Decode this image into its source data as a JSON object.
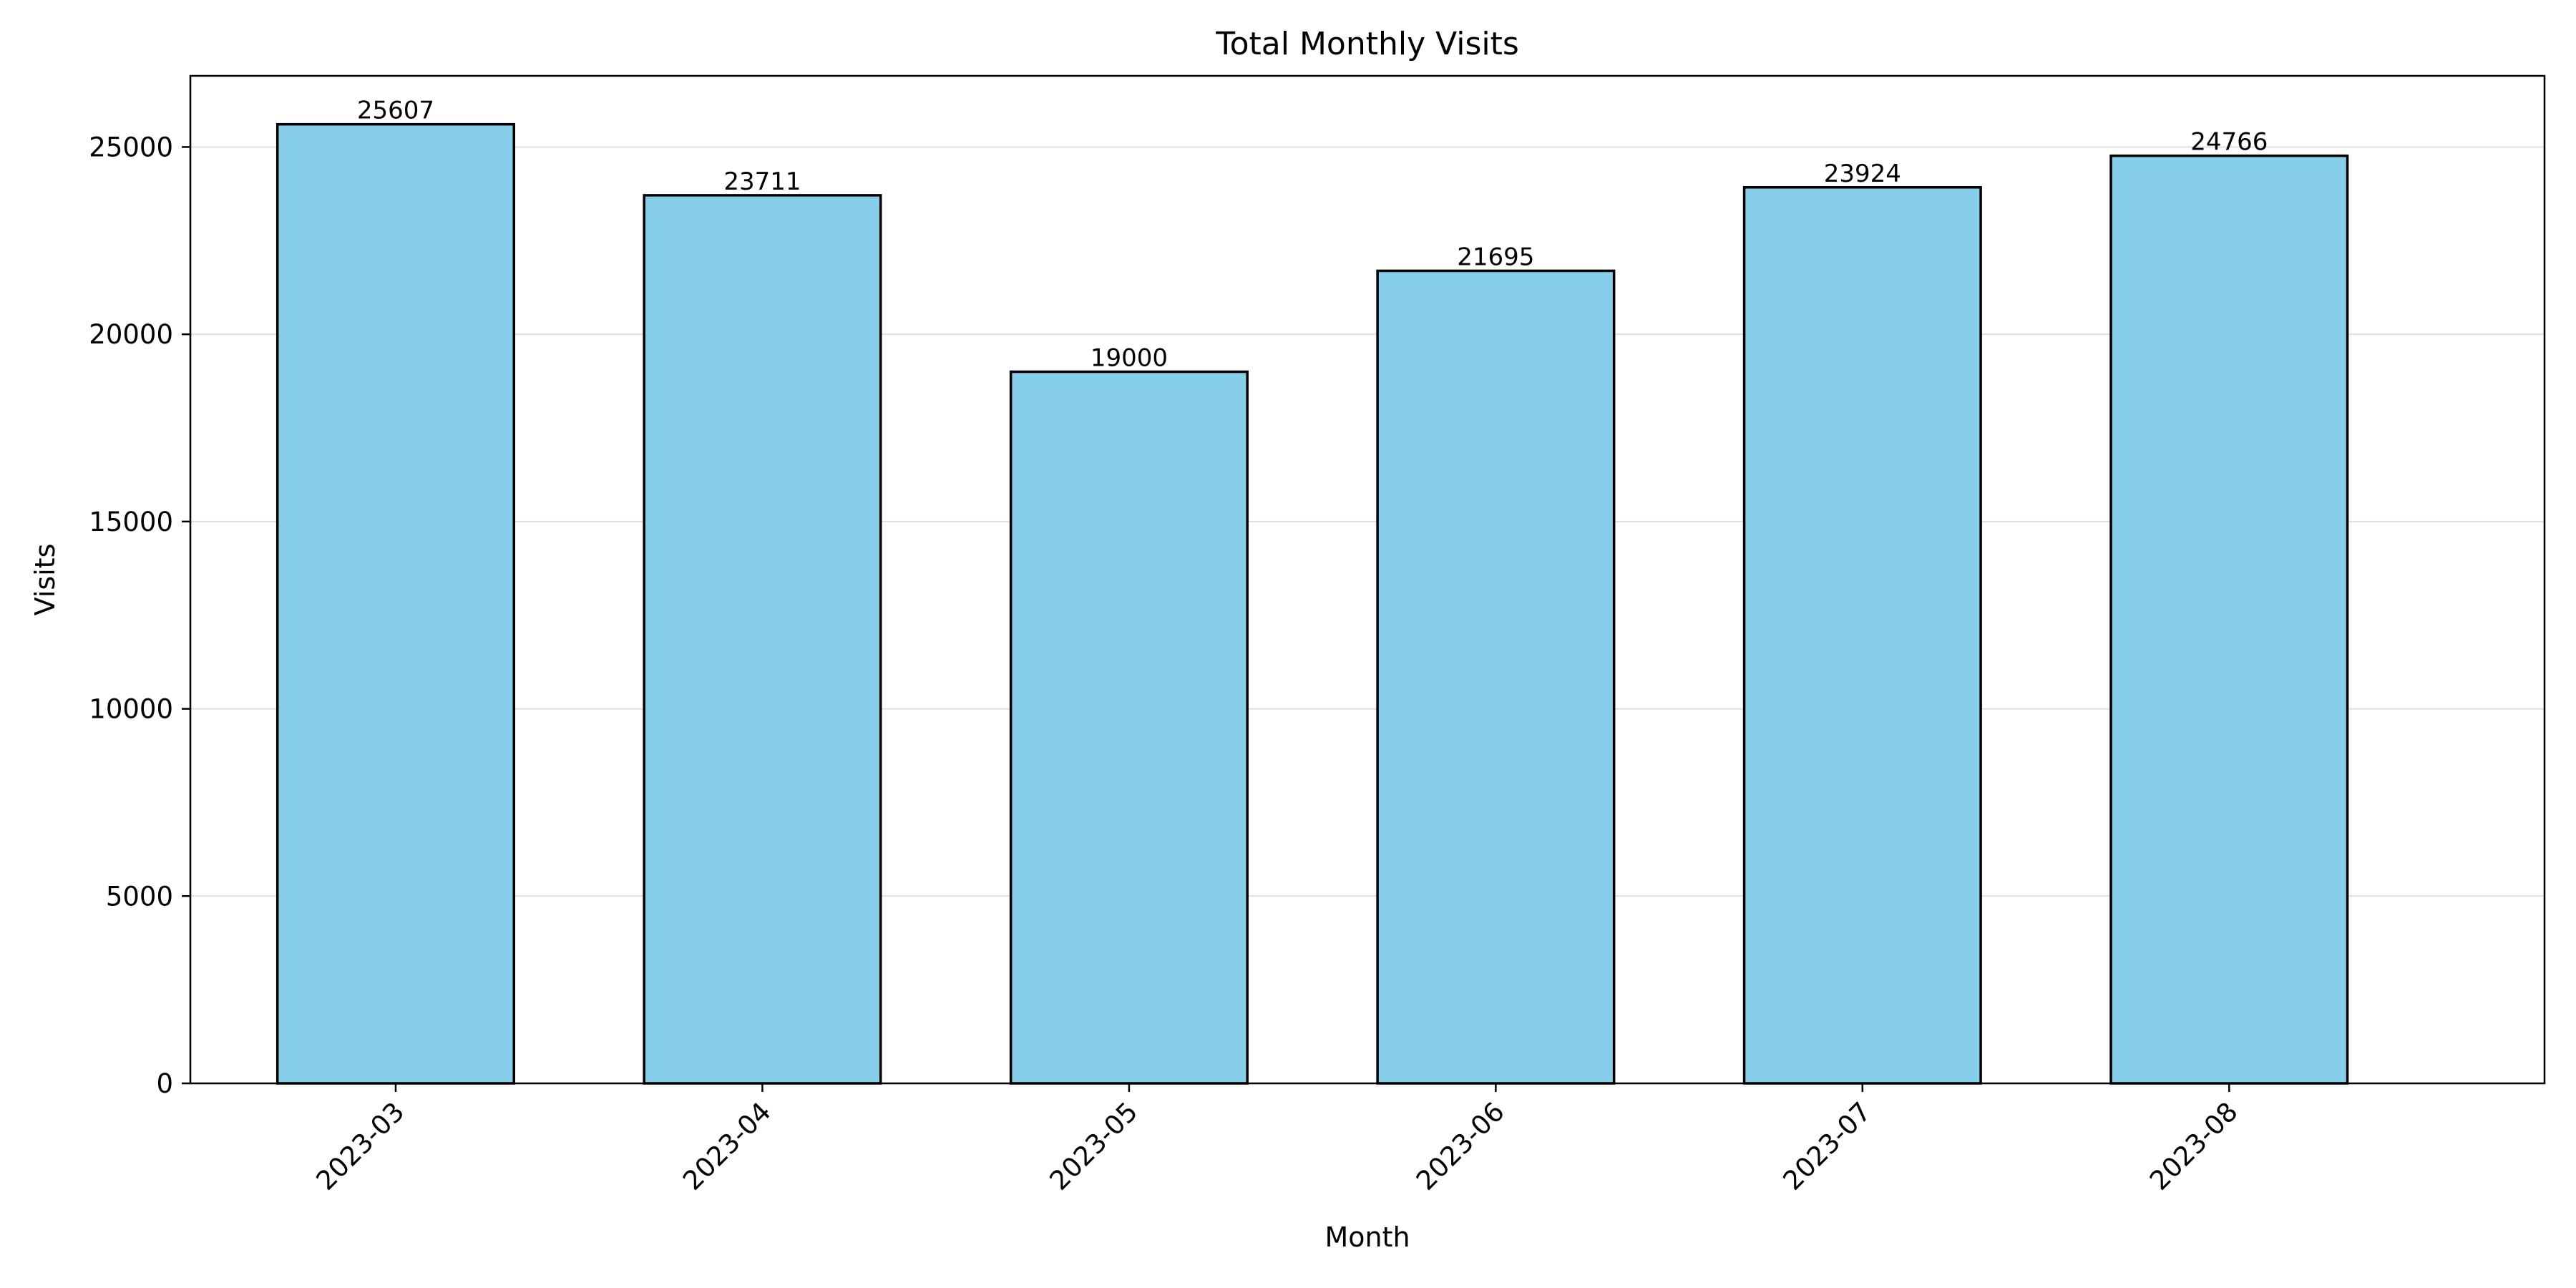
{
  "chart_data": {
    "type": "bar",
    "title": "Total Monthly Visits",
    "xlabel": "Month",
    "ylabel": "Visits",
    "categories": [
      "2023-03",
      "2023-04",
      "2023-05",
      "2023-06",
      "2023-07",
      "2023-08"
    ],
    "values": [
      25607,
      23711,
      19000,
      21695,
      23924,
      24766
    ],
    "ylim": [
      0,
      26900
    ],
    "yticks": [
      0,
      5000,
      10000,
      15000,
      20000,
      25000
    ],
    "grid": "y-axis only",
    "legend": "none",
    "bar_color": "#87CEEB",
    "edge_color": "#000000",
    "grid_color": "#e0e0e0"
  }
}
